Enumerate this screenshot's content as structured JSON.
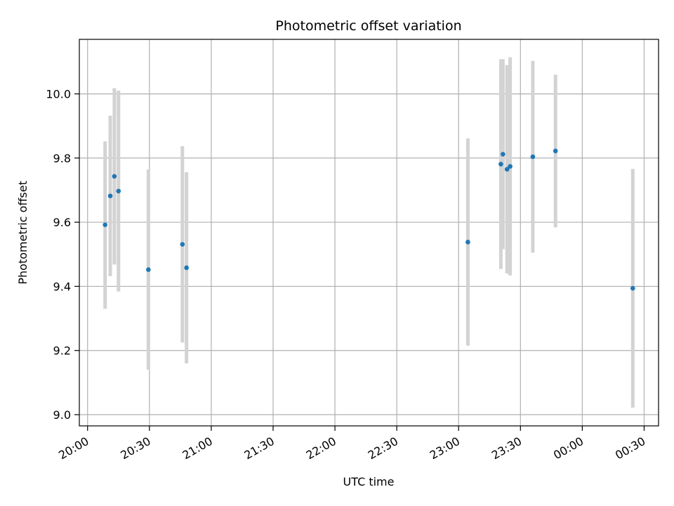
{
  "chart_data": {
    "type": "scatter",
    "title": "Photometric offset variation",
    "xlabel": "UTC time",
    "ylabel": "Photometric offset",
    "x_tick_labels": [
      "20:00",
      "20:30",
      "21:00",
      "21:30",
      "22:00",
      "22:30",
      "23:00",
      "23:30",
      "00:00",
      "00:30"
    ],
    "y_tick_labels": [
      "9.0",
      "9.2",
      "9.4",
      "9.6",
      "9.8",
      "10.0"
    ],
    "y_ticks": [
      9.0,
      9.2,
      9.4,
      9.6,
      9.8,
      10.0
    ],
    "x_ticks": [
      "2024-01-01T20:00",
      "2024-01-01T20:30",
      "2024-01-01T21:00",
      "2024-01-01T21:30",
      "2024-01-01T22:00",
      "2024-01-01T22:30",
      "2024-01-01T23:00",
      "2024-01-01T23:30",
      "2024-01-02T00:00",
      "2024-01-02T00:30"
    ],
    "xlim": [
      "2024-01-01T19:56",
      "2024-01-02T00:37"
    ],
    "ylim": [
      8.965,
      10.17
    ],
    "grid": true,
    "point_color": "#1f77b4",
    "errorbar_color": "#d3d3d3",
    "points": [
      {
        "x": "2024-01-01T20:08:30",
        "y": 9.592,
        "ylow": 9.33,
        "yhigh": 9.852
      },
      {
        "x": "2024-01-01T20:11:00",
        "y": 9.682,
        "ylow": 9.432,
        "yhigh": 9.932
      },
      {
        "x": "2024-01-01T20:13:00",
        "y": 9.743,
        "ylow": 9.468,
        "yhigh": 10.018
      },
      {
        "x": "2024-01-01T20:15:00",
        "y": 9.697,
        "ylow": 9.384,
        "yhigh": 10.01
      },
      {
        "x": "2024-01-01T20:29:30",
        "y": 9.452,
        "ylow": 9.14,
        "yhigh": 9.764
      },
      {
        "x": "2024-01-01T20:46:00",
        "y": 9.531,
        "ylow": 9.225,
        "yhigh": 9.837
      },
      {
        "x": "2024-01-01T20:48:00",
        "y": 9.458,
        "ylow": 9.16,
        "yhigh": 9.756
      },
      {
        "x": "2024-01-01T23:04:30",
        "y": 9.538,
        "ylow": 9.215,
        "yhigh": 9.861
      },
      {
        "x": "2024-01-01T23:20:30",
        "y": 9.781,
        "ylow": 9.454,
        "yhigh": 10.108
      },
      {
        "x": "2024-01-01T23:21:30",
        "y": 9.812,
        "ylow": 9.516,
        "yhigh": 10.108
      },
      {
        "x": "2024-01-01T23:23:30",
        "y": 9.765,
        "ylow": 9.44,
        "yhigh": 10.09
      },
      {
        "x": "2024-01-01T23:25:00",
        "y": 9.774,
        "ylow": 9.434,
        "yhigh": 10.114
      },
      {
        "x": "2024-01-01T23:36:00",
        "y": 9.804,
        "ylow": 9.505,
        "yhigh": 10.103
      },
      {
        "x": "2024-01-01T23:47:00",
        "y": 9.822,
        "ylow": 9.584,
        "yhigh": 10.06
      },
      {
        "x": "2024-01-02T00:24:30",
        "y": 9.394,
        "ylow": 9.022,
        "yhigh": 9.766
      }
    ]
  }
}
